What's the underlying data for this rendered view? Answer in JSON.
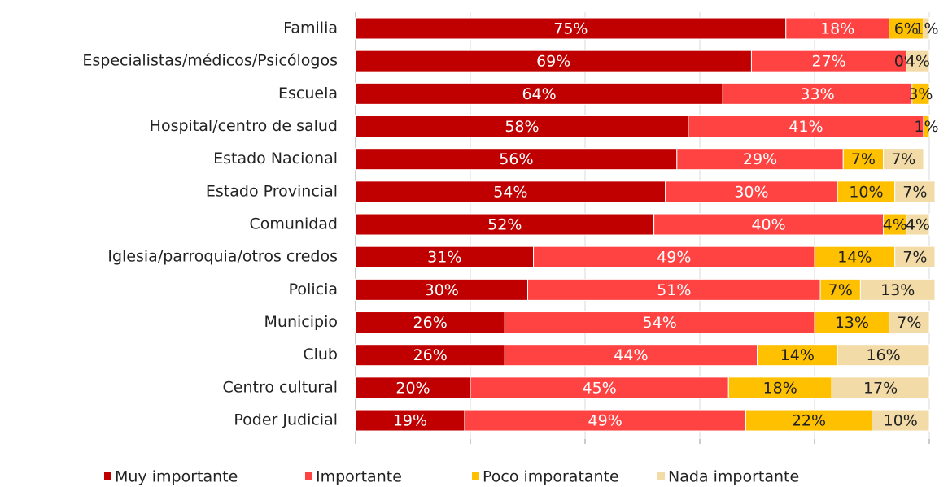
{
  "chart_data": {
    "type": "stacked-barh",
    "categories": [
      "Familia",
      "Especialistas/médicos/Psicólogos",
      "Escuela",
      "Hospital/centro de salud",
      "Estado Nacional",
      "Estado Provincial",
      "Comunidad",
      "Iglesia/parroquia/otros credos",
      "Policia",
      "Municipio",
      "Club",
      "Centro cultural",
      "Poder Judicial"
    ],
    "series": [
      {
        "name": "Muy importante",
        "color": "#c00000",
        "values": [
          75,
          69,
          64,
          58,
          56,
          54,
          52,
          31,
          30,
          26,
          26,
          20,
          19
        ],
        "value_labels": [
          "75%",
          "69%",
          "64%",
          "58%",
          "56%",
          "54%",
          "52%",
          "31%",
          "30%",
          "26%",
          "26%",
          "20%",
          "19%"
        ]
      },
      {
        "name": "Importante",
        "color": "#ff4343",
        "values": [
          18,
          27,
          33,
          41,
          29,
          30,
          40,
          49,
          51,
          54,
          44,
          45,
          49
        ],
        "value_labels": [
          "18%",
          "27%",
          "33%",
          "41%",
          "29%",
          "30%",
          "40%",
          "49%",
          "51%",
          "54%",
          "44%",
          "45%",
          "49%"
        ]
      },
      {
        "name": "Poco imporatante",
        "color": "#ffc000",
        "values": [
          6,
          0,
          3,
          1,
          7,
          10,
          4,
          14,
          7,
          13,
          14,
          18,
          22
        ],
        "value_labels": [
          "6%",
          "0%",
          "3%",
          "1%",
          "7%",
          "10%",
          "4%",
          "14%",
          "7%",
          "13%",
          "14%",
          "18%",
          "22%"
        ]
      },
      {
        "name": "Nada importante",
        "color": "#f2dba6",
        "values": [
          1,
          4,
          null,
          null,
          7,
          7,
          4,
          7,
          13,
          7,
          16,
          17,
          10
        ],
        "value_labels": [
          "1%",
          "4%",
          null,
          null,
          "7%",
          "7%",
          "4%",
          "7%",
          "13%",
          "7%",
          "16%",
          "17%",
          "10%"
        ]
      }
    ],
    "xlim": [
      0,
      100
    ],
    "xticks": [
      0,
      20,
      40,
      60,
      80,
      100
    ],
    "grid": true,
    "legend": "bottom"
  }
}
